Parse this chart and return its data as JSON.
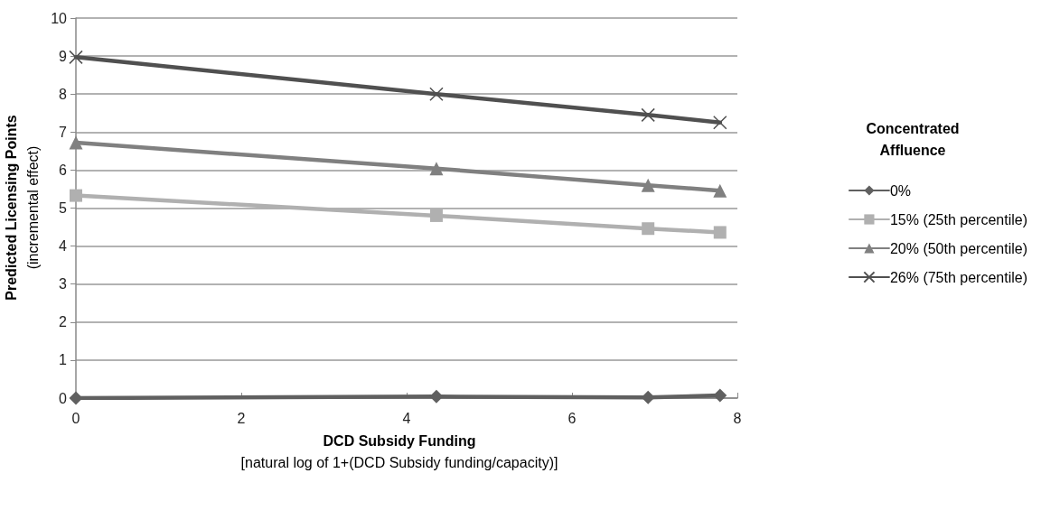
{
  "chart_data": {
    "type": "line",
    "xlabel": "DCD Subsidy Funding\n[natural log of 1+(DCD Subsidy funding/capacity)]",
    "ylabel": "Predicted Licensing Points\n(incremental effect)",
    "legend_title": "Concentrated\nAffluence",
    "x": [
      0,
      4.36,
      6.92,
      7.79
    ],
    "series": [
      {
        "name": "0%",
        "color": "#606060",
        "marker": "diamond",
        "values": [
          0,
          0.04,
          0.02,
          0.07
        ]
      },
      {
        "name": "15% (25th percentile)",
        "color": "#b0b0b0",
        "marker": "square",
        "values": [
          5.33,
          4.8,
          4.46,
          4.36
        ]
      },
      {
        "name": "20% (50th percentile)",
        "color": "#808080",
        "marker": "triangle",
        "values": [
          6.72,
          6.04,
          5.6,
          5.46
        ]
      },
      {
        "name": "26% (75th percentile)",
        "color": "#505050",
        "marker": "cross",
        "values": [
          8.97,
          8.0,
          7.45,
          7.25
        ]
      }
    ],
    "xlim": [
      0,
      8
    ],
    "xticks": [
      0,
      2,
      4,
      6,
      8
    ],
    "ylim": [
      0,
      10
    ],
    "yticks": [
      0,
      1,
      2,
      3,
      4,
      5,
      6,
      7,
      8,
      9,
      10
    ],
    "grid": "y",
    "legend": "right",
    "line_style": "solid"
  }
}
